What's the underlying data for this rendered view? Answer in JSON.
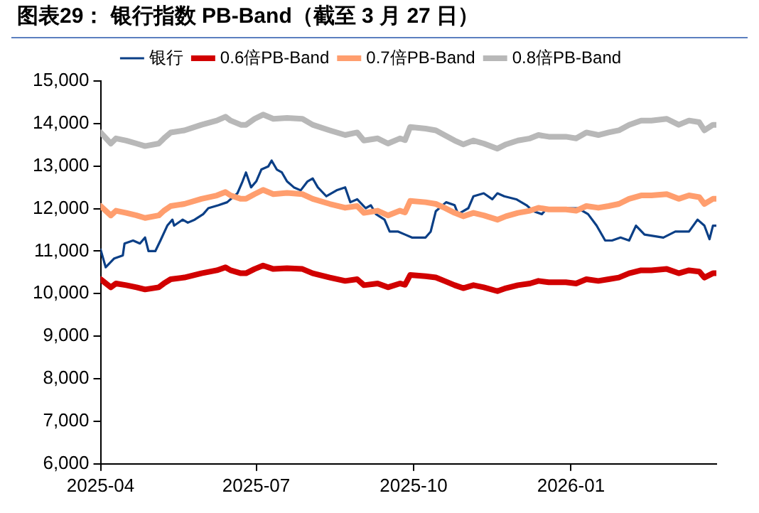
{
  "chart_data": {
    "type": "line",
    "title": "图表29：  银行指数 PB-Band（截至 3 月 27 日）",
    "x": [
      "2025-04-01",
      "2025-04-07",
      "2025-04-10",
      "2025-04-16",
      "2025-04-22",
      "2025-04-27",
      "2025-05-05",
      "2025-05-08",
      "2025-05-12",
      "2025-05-20",
      "2025-05-30",
      "2025-06-08",
      "2025-06-13",
      "2025-06-16",
      "2025-06-22",
      "2025-06-25",
      "2025-06-30",
      "2025-07-05",
      "2025-07-11",
      "2025-07-19",
      "2025-07-28",
      "2025-08-03",
      "2025-08-13",
      "2025-08-22",
      "2025-08-29",
      "2025-09-02",
      "2025-09-10",
      "2025-09-16",
      "2025-09-23",
      "2025-09-26",
      "2025-09-29",
      "2025-10-08",
      "2025-10-14",
      "2025-10-19",
      "2025-10-25",
      "2025-10-30",
      "2025-11-05",
      "2025-11-11",
      "2025-11-19",
      "2025-11-24",
      "2025-12-01",
      "2025-12-08",
      "2025-12-13",
      "2025-12-19",
      "2025-12-29",
      "2026-01-04",
      "2026-01-10",
      "2026-01-17",
      "2026-01-23",
      "2026-01-29",
      "2026-02-04",
      "2026-02-11",
      "2026-02-17",
      "2026-02-26",
      "2026-03-05",
      "2026-03-11",
      "2026-03-17",
      "2026-03-20",
      "2026-03-25",
      "2026-03-27"
    ],
    "series": [
      {
        "name": "银行",
        "color": "#0b3f86",
        "x": [
          "2025-04-01",
          "2025-04-04",
          "2025-04-09",
          "2025-04-14",
          "2025-04-15",
          "2025-04-20",
          "2025-04-24",
          "2025-04-27",
          "2025-04-29",
          "2025-05-03",
          "2025-05-06",
          "2025-05-10",
          "2025-05-13",
          "2025-05-14",
          "2025-05-19",
          "2025-05-22",
          "2025-05-26",
          "2025-05-31",
          "2025-06-03",
          "2025-06-09",
          "2025-06-14",
          "2025-06-20",
          "2025-06-23",
          "2025-06-25",
          "2025-06-28",
          "2025-07-01",
          "2025-07-04",
          "2025-07-08",
          "2025-07-10",
          "2025-07-13",
          "2025-07-16",
          "2025-07-19",
          "2025-07-23",
          "2025-07-27",
          "2025-07-31",
          "2025-08-03",
          "2025-08-06",
          "2025-08-11",
          "2025-08-17",
          "2025-08-22",
          "2025-08-25",
          "2025-08-29",
          "2025-09-03",
          "2025-09-06",
          "2025-09-09",
          "2025-09-14",
          "2025-09-17",
          "2025-09-22",
          "2025-09-26",
          "2025-09-30",
          "2025-10-08",
          "2025-10-11",
          "2025-10-14",
          "2025-10-20",
          "2025-10-25",
          "2025-10-27",
          "2025-11-02",
          "2025-11-05",
          "2025-11-11",
          "2025-11-16",
          "2025-11-19",
          "2025-11-23",
          "2025-11-30",
          "2025-12-06",
          "2025-12-10",
          "2025-12-15",
          "2025-12-18",
          "2025-12-27",
          "2026-01-05",
          "2026-01-11",
          "2026-01-16",
          "2026-01-21",
          "2026-01-25",
          "2026-01-30",
          "2026-02-04",
          "2026-02-08",
          "2026-02-13",
          "2026-02-24",
          "2026-03-03",
          "2026-03-11",
          "2026-03-16",
          "2026-03-20",
          "2026-03-23",
          "2026-03-25",
          "2026-03-27"
        ],
        "values": [
          11040,
          10620,
          10830,
          10900,
          11180,
          11250,
          11180,
          11320,
          11000,
          11000,
          11250,
          11600,
          11740,
          11600,
          11740,
          11670,
          11740,
          11870,
          12010,
          12080,
          12150,
          12360,
          12640,
          12850,
          12500,
          12640,
          12920,
          12990,
          13130,
          12920,
          12850,
          12640,
          12500,
          12430,
          12640,
          12710,
          12500,
          12290,
          12430,
          12500,
          12150,
          12220,
          12010,
          12080,
          11870,
          11740,
          11460,
          11460,
          11390,
          11320,
          11320,
          11460,
          11940,
          12150,
          12080,
          11870,
          12010,
          12290,
          12360,
          12220,
          12360,
          12290,
          12220,
          12080,
          11940,
          11870,
          12010,
          12010,
          12010,
          11870,
          11600,
          11250,
          11250,
          11320,
          11250,
          11600,
          11390,
          11320,
          11460,
          11460,
          11740,
          11600,
          11280,
          11600,
          11600
        ]
      },
      {
        "name": "0.6倍PB-Band",
        "color": "#d10000",
        "values": [
          10340,
          10150,
          10240,
          10200,
          10150,
          10100,
          10150,
          10240,
          10340,
          10380,
          10480,
          10550,
          10620,
          10550,
          10480,
          10480,
          10580,
          10660,
          10580,
          10600,
          10580,
          10480,
          10380,
          10300,
          10340,
          10200,
          10240,
          10150,
          10240,
          10210,
          10440,
          10410,
          10380,
          10300,
          10200,
          10130,
          10200,
          10150,
          10060,
          10130,
          10200,
          10240,
          10300,
          10270,
          10270,
          10240,
          10340,
          10300,
          10340,
          10380,
          10480,
          10550,
          10550,
          10580,
          10480,
          10550,
          10520,
          10380,
          10480,
          10480
        ]
      },
      {
        "name": "0.7倍PB-Band",
        "color": "#ff9e6e",
        "values": [
          12060,
          11840,
          11950,
          11900,
          11840,
          11780,
          11840,
          11950,
          12060,
          12110,
          12230,
          12310,
          12390,
          12310,
          12230,
          12230,
          12340,
          12440,
          12340,
          12370,
          12340,
          12230,
          12110,
          12020,
          12060,
          11900,
          11950,
          11840,
          11950,
          11910,
          12180,
          12150,
          12110,
          12020,
          11900,
          11820,
          11900,
          11840,
          11740,
          11820,
          11900,
          11950,
          12020,
          11980,
          11980,
          11950,
          12060,
          12020,
          12060,
          12110,
          12230,
          12310,
          12310,
          12340,
          12230,
          12310,
          12270,
          12110,
          12230,
          12230
        ]
      },
      {
        "name": "0.8倍PB-Band",
        "color": "#b8b8b8",
        "values": [
          13790,
          13530,
          13650,
          13600,
          13530,
          13470,
          13530,
          13650,
          13790,
          13840,
          13970,
          14070,
          14160,
          14070,
          13970,
          13970,
          14110,
          14210,
          14110,
          14130,
          14110,
          13970,
          13840,
          13730,
          13790,
          13600,
          13650,
          13530,
          13650,
          13610,
          13920,
          13880,
          13840,
          13730,
          13600,
          13510,
          13600,
          13530,
          13410,
          13510,
          13600,
          13650,
          13730,
          13690,
          13690,
          13650,
          13790,
          13730,
          13790,
          13840,
          13970,
          14070,
          14070,
          14110,
          13970,
          14070,
          14030,
          13840,
          13970,
          13970
        ]
      }
    ],
    "xlim": [
      "2025-04-01",
      "2026-03-27"
    ],
    "xticks": [
      "2025-04",
      "2025-07",
      "2025-10",
      "2026-01"
    ],
    "ylim": [
      6000,
      15000
    ],
    "yticks": [
      {
        "value": 6000,
        "label": "6,000"
      },
      {
        "value": 7000,
        "label": "7,000"
      },
      {
        "value": 8000,
        "label": "8,000"
      },
      {
        "value": 9000,
        "label": "9,000"
      },
      {
        "value": 10000,
        "label": "10,000"
      },
      {
        "value": 11000,
        "label": "11,000"
      },
      {
        "value": 12000,
        "label": "12,000"
      },
      {
        "value": 13000,
        "label": "13,000"
      },
      {
        "value": 14000,
        "label": "14,000"
      },
      {
        "value": 15000,
        "label": "15,000"
      }
    ],
    "grid": false,
    "legend": "top",
    "marker": "none",
    "line_style": "solid"
  }
}
